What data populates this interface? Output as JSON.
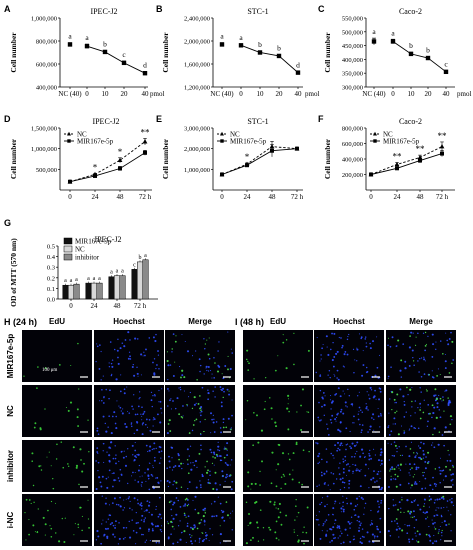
{
  "chart_data": [
    {
      "panel": "A",
      "type": "line",
      "title": "IPEC-J2",
      "ylabel": "Cell number",
      "xunit": "pmol",
      "categories": [
        "NC (40)",
        "0",
        "10",
        "20",
        "40"
      ],
      "values": [
        770000,
        755000,
        705000,
        610000,
        520000
      ],
      "errors": [
        15000,
        18000,
        12000,
        15000,
        15000
      ],
      "letters": [
        "a",
        "a",
        "b",
        "c",
        "d"
      ],
      "ylim": [
        400000,
        1000000
      ],
      "yticks": [
        "400,000",
        "600,000",
        "800,000",
        "1,000,000"
      ]
    },
    {
      "panel": "B",
      "type": "line",
      "title": "STC-1",
      "ylabel": "Cell number",
      "xunit": "pmol",
      "categories": [
        "NC (40)",
        "0",
        "10",
        "20",
        "40"
      ],
      "values": [
        1940000,
        1925000,
        1800000,
        1740000,
        1450000
      ],
      "errors": [
        30000,
        25000,
        30000,
        25000,
        20000
      ],
      "letters": [
        "a",
        "a",
        "b",
        "b",
        "d"
      ],
      "ylim": [
        1200000,
        2400000
      ],
      "yticks": [
        "1,200,000",
        "1,600,000",
        "2,000,000",
        "2,400,000"
      ]
    },
    {
      "panel": "C",
      "type": "line",
      "title": "Caco-2",
      "ylabel": "Cell number",
      "xunit": "pmol",
      "categories": [
        "NC (40)",
        "0",
        "10",
        "20",
        "40"
      ],
      "values": [
        465000,
        465000,
        420000,
        405000,
        355000
      ],
      "errors": [
        12000,
        8000,
        6000,
        5000,
        5000
      ],
      "letters": [
        "a",
        "a",
        "b",
        "b",
        "c"
      ],
      "ylim": [
        300000,
        550000
      ],
      "yticks": [
        "300,000",
        "350,000",
        "400,000",
        "450,000",
        "500,000",
        "550,000"
      ]
    },
    {
      "panel": "D",
      "type": "line",
      "title": "IPEC-J2",
      "ylabel": "Cell number",
      "categories": [
        "0",
        "24",
        "48",
        "72 h"
      ],
      "series": [
        {
          "name": "NC",
          "values": [
            200000,
            380000,
            720000,
            1170000
          ],
          "errors": [
            10000,
            20000,
            60000,
            80000
          ]
        },
        {
          "name": "MIR167e-5p",
          "values": [
            200000,
            340000,
            520000,
            900000
          ],
          "errors": [
            10000,
            20000,
            50000,
            60000
          ]
        }
      ],
      "marks": [
        "",
        "*",
        "*",
        "**"
      ],
      "ylim": [
        0,
        1500000
      ],
      "yticks": [
        "500,000",
        "1,000,000",
        "1,500,000"
      ]
    },
    {
      "panel": "E",
      "type": "line",
      "title": "STC-1",
      "ylabel": "Cell number",
      "categories": [
        "0",
        "24",
        "48",
        "72 h"
      ],
      "series": [
        {
          "name": "NC",
          "values": [
            750000,
            1250000,
            2100000,
            2000000
          ],
          "errors": [
            20000,
            60000,
            250000,
            50000
          ]
        },
        {
          "name": "MIR167e-5p",
          "values": [
            750000,
            1200000,
            1900000,
            2000000
          ],
          "errors": [
            20000,
            50000,
            300000,
            50000
          ]
        }
      ],
      "marks": [
        "",
        "*",
        "",
        ""
      ],
      "ylim": [
        0,
        3000000
      ],
      "yticks": [
        "1,000,000",
        "2,000,000",
        "3,000,000"
      ]
    },
    {
      "panel": "F",
      "type": "line",
      "title": "Caco-2",
      "ylabel": "Cell number",
      "categories": [
        "0",
        "24",
        "48",
        "72 h"
      ],
      "series": [
        {
          "name": "NC",
          "values": [
            200000,
            330000,
            420000,
            560000
          ],
          "errors": [
            10000,
            25000,
            30000,
            60000
          ]
        },
        {
          "name": "MIR167e-5p",
          "values": [
            200000,
            280000,
            380000,
            470000
          ],
          "errors": [
            10000,
            20000,
            30000,
            40000
          ]
        }
      ],
      "marks": [
        "",
        "**",
        "**",
        "**"
      ],
      "ylim": [
        0,
        800000
      ],
      "yticks": [
        "200,000",
        "400,000",
        "600,000",
        "800,000"
      ]
    },
    {
      "panel": "G",
      "type": "bar",
      "title": "IPEC-J2",
      "ylabel": "OD of MTT (570 nm)",
      "categories": [
        "0",
        "24",
        "48",
        "72 h"
      ],
      "series": [
        {
          "name": "MIR167e-5p",
          "values": [
            0.13,
            0.15,
            0.21,
            0.28
          ],
          "color": "#111111"
        },
        {
          "name": "NC",
          "values": [
            0.13,
            0.15,
            0.22,
            0.35
          ],
          "color": "#d8d8d8"
        },
        {
          "name": "inhibitor",
          "values": [
            0.14,
            0.15,
            0.22,
            0.37
          ],
          "color": "#8a8a8a"
        }
      ],
      "letters": [
        [
          "a",
          "a",
          "a"
        ],
        [
          "a",
          "a",
          "a"
        ],
        [
          "a",
          "a",
          "a"
        ],
        [
          "c",
          "b",
          "a"
        ]
      ],
      "ylim": [
        0,
        0.5
      ],
      "yticks": [
        "0.0",
        "0.1",
        "0.2",
        "0.3",
        "0.4",
        "0.5"
      ]
    }
  ],
  "micro": {
    "left_title": "H (24 h)",
    "right_title": "I (48 h)",
    "columns": [
      "EdU",
      "Hoechst",
      "Merge"
    ],
    "rows": [
      "MIR167e-5p",
      "NC",
      "inhibitor",
      "i-NC"
    ],
    "scale_label": "100 μm"
  }
}
